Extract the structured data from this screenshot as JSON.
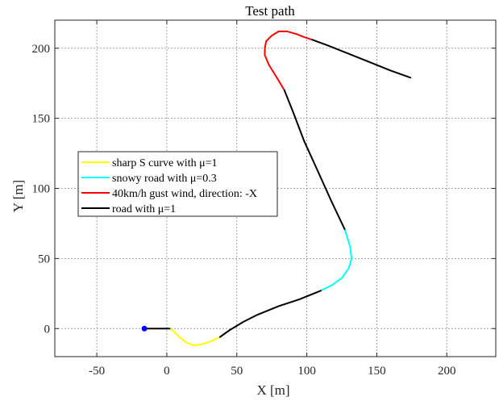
{
  "chart_data": {
    "type": "line",
    "title": "Test path",
    "xlabel": "X [m]",
    "ylabel": "Y [m]",
    "xlim": [
      -80,
      235
    ],
    "ylim": [
      -20,
      220
    ],
    "xticks": [
      -50,
      0,
      50,
      100,
      150,
      200
    ],
    "yticks": [
      0,
      50,
      100,
      150,
      200
    ],
    "grid": true,
    "legend_position": "center-left",
    "start_marker": {
      "x": -16,
      "y": 0,
      "color": "#0000ff"
    },
    "series": [
      {
        "name": "sharp S curve with μ=1",
        "color": "#ffff00",
        "segments": [
          [
            [
              2,
              0
            ],
            [
              5,
              -2
            ],
            [
              9,
              -6
            ],
            [
              14,
              -10
            ],
            [
              19,
              -12
            ],
            [
              24,
              -11.5
            ],
            [
              29,
              -10
            ],
            [
              34,
              -8
            ],
            [
              38,
              -6
            ]
          ]
        ]
      },
      {
        "name": "snowy road with μ=0.3",
        "color": "#00ffff",
        "segments": [
          [
            [
              110,
              27
            ],
            [
              118,
              31
            ],
            [
              125,
              36
            ],
            [
              130,
              43
            ],
            [
              132,
              50
            ],
            [
              131,
              58
            ],
            [
              129,
              65
            ],
            [
              127,
              71
            ]
          ]
        ]
      },
      {
        "name": "40km/h gust wind, direction: -X",
        "color": "#ff0000",
        "segments": [
          [
            [
              84,
              170
            ],
            [
              78,
              180
            ],
            [
              73,
              188
            ],
            [
              70,
              195
            ],
            [
              70,
              200
            ],
            [
              71,
              205
            ],
            [
              75,
              209
            ],
            [
              80,
              212
            ],
            [
              86,
              212
            ],
            [
              93,
              210
            ],
            [
              98,
              208
            ],
            [
              104,
              206
            ]
          ]
        ]
      },
      {
        "name": "road with μ=1",
        "color": "#000000",
        "segments": [
          [
            [
              -16,
              0
            ],
            [
              2,
              0
            ]
          ],
          [
            [
              38,
              -6
            ],
            [
              45,
              -1
            ],
            [
              55,
              5
            ],
            [
              65,
              10
            ],
            [
              80,
              16
            ],
            [
              95,
              21
            ],
            [
              110,
              27
            ]
          ],
          [
            [
              127,
              71
            ],
            [
              118,
              90
            ],
            [
              108,
              112
            ],
            [
              98,
              134
            ],
            [
              90,
              155
            ],
            [
              84,
              170
            ]
          ],
          [
            [
              104,
              206
            ],
            [
              115,
              202
            ],
            [
              130,
              196
            ],
            [
              145,
              190
            ],
            [
              160,
              184
            ],
            [
              174,
              179
            ]
          ]
        ]
      }
    ]
  }
}
